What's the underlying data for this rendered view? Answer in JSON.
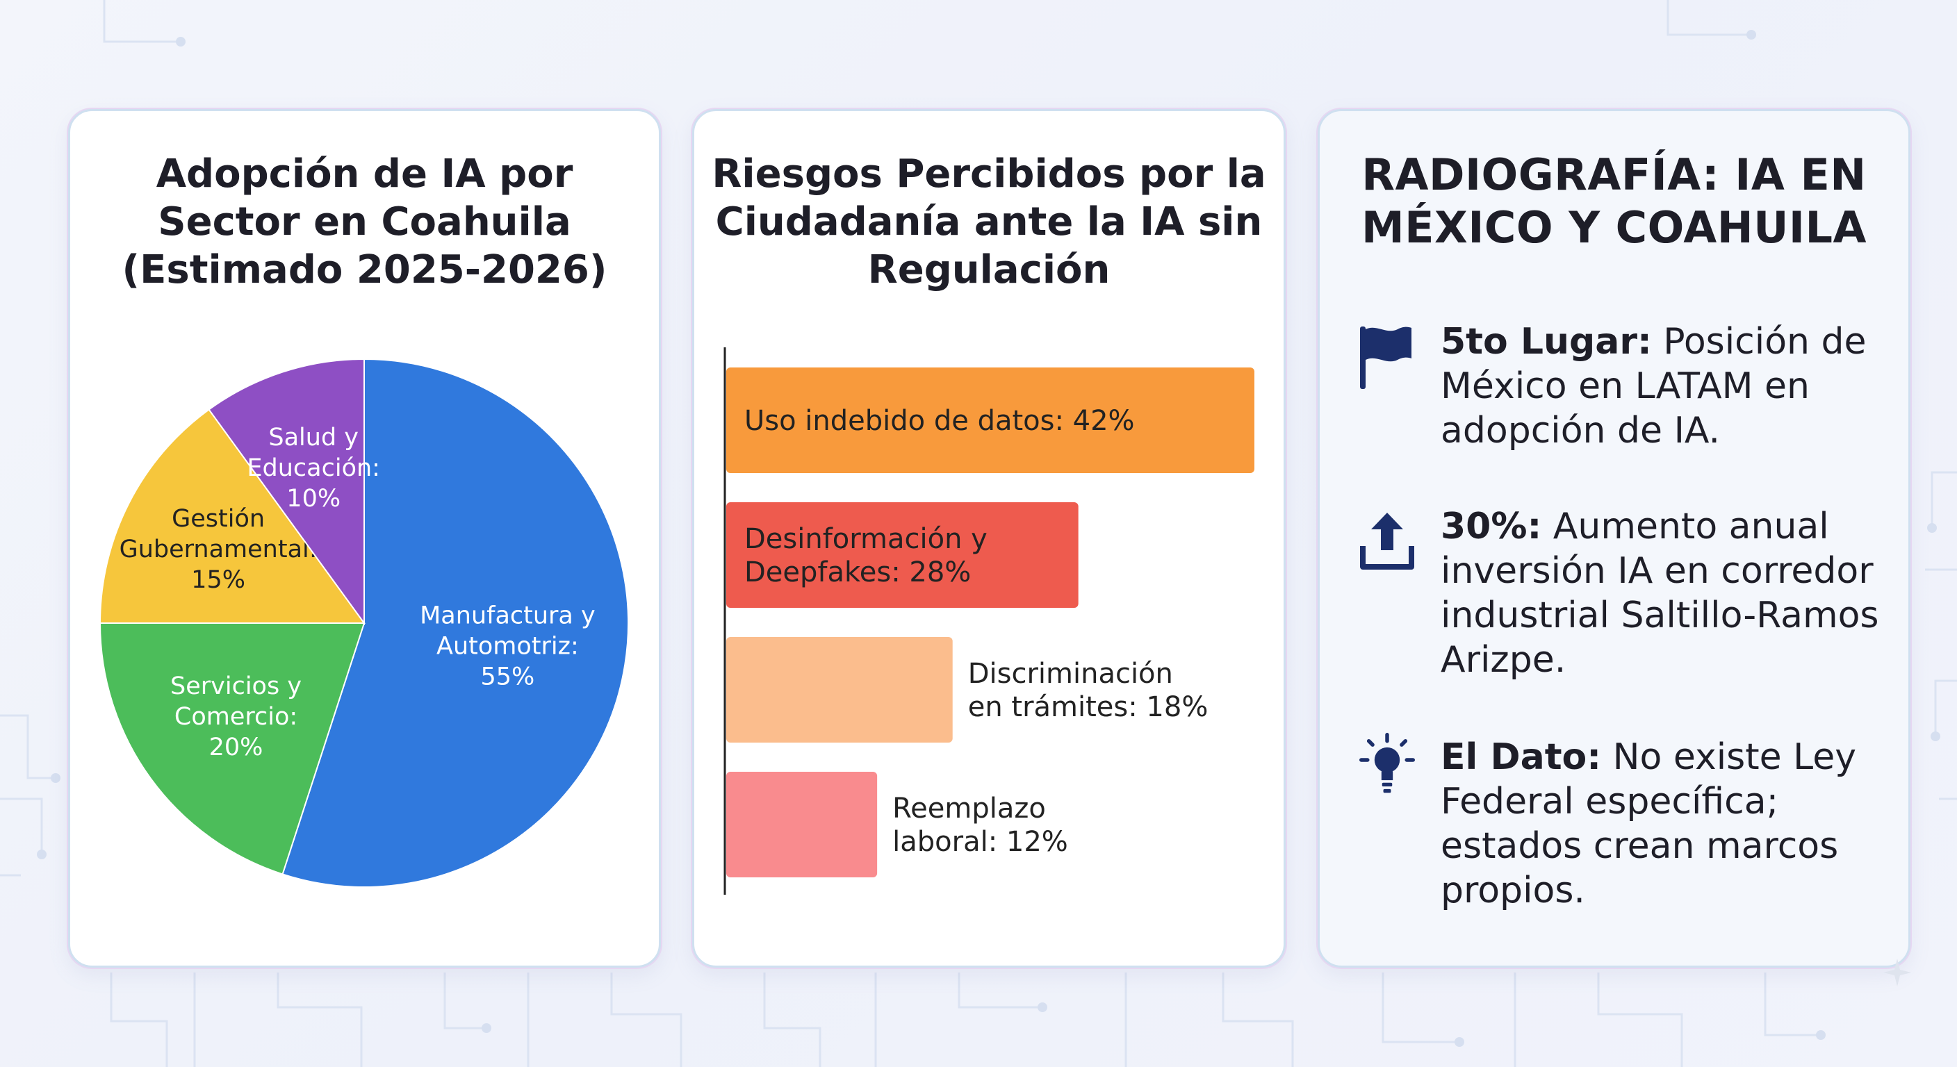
{
  "colors": {
    "manufactura": "#3079dd",
    "servicios": "#4cbd5a",
    "gestion": "#f6c63c",
    "salud": "#8e4fc4",
    "bar1": "#f89a3c",
    "bar2": "#ee5b4e",
    "bar3": "#fbbd8d",
    "bar4": "#f98b8e",
    "icon": "#1c2f6b"
  },
  "chart_data": [
    {
      "type": "pie",
      "title": [
        "Adopción de IA por",
        "Sector en Coahuila",
        "(Estimado 2025-2026)"
      ],
      "slices": [
        {
          "label": [
            "Manufactura y",
            "Automotriz:",
            "55%"
          ],
          "value": 55,
          "color_key": "manufactura"
        },
        {
          "label": [
            "Servicios y",
            "Comercio:",
            "20%"
          ],
          "value": 20,
          "color_key": "servicios"
        },
        {
          "label": [
            "Gestión",
            "Gubernamental:",
            "15%"
          ],
          "value": 15,
          "color_key": "gestion"
        },
        {
          "label": [
            "Salud y",
            "Educación:",
            "10%"
          ],
          "value": 10,
          "color_key": "salud"
        }
      ]
    },
    {
      "type": "bar",
      "orientation": "horizontal",
      "title": [
        "Riesgos Percibidos por la",
        "Ciudadanía ante la IA sin",
        "Regulación"
      ],
      "xlim": [
        0,
        42
      ],
      "bars": [
        {
          "label": [
            "Uso indebido de datos: 42%"
          ],
          "value": 42,
          "color_key": "bar1",
          "label_inside": true
        },
        {
          "label": [
            "Desinformación y",
            "Deepfakes: 28%"
          ],
          "value": 28,
          "color_key": "bar2",
          "label_inside": true
        },
        {
          "label": [
            "Discriminación",
            "en trámites: 18%"
          ],
          "value": 18,
          "color_key": "bar3",
          "label_inside": false
        },
        {
          "label": [
            "Reemplazo",
            "laboral: 12%"
          ],
          "value": 12,
          "color_key": "bar4",
          "label_inside": false
        }
      ]
    }
  ],
  "facts_panel": {
    "title": [
      "RADIOGRAFÍA: IA EN",
      "MÉXICO Y COAHUILA"
    ],
    "facts": [
      {
        "icon": "flag-icon",
        "bold": "5to Lugar:",
        "text": " Posición de México en LATAM en adopción de IA."
      },
      {
        "icon": "upload-icon",
        "bold": "30%:",
        "text": " Aumento anual inversión IA en corredor industrial Saltillo-Ramos Arizpe."
      },
      {
        "icon": "lightbulb-icon",
        "bold": "El Dato:",
        "text": " No existe Ley Federal específica; estados crean marcos propios."
      }
    ]
  }
}
